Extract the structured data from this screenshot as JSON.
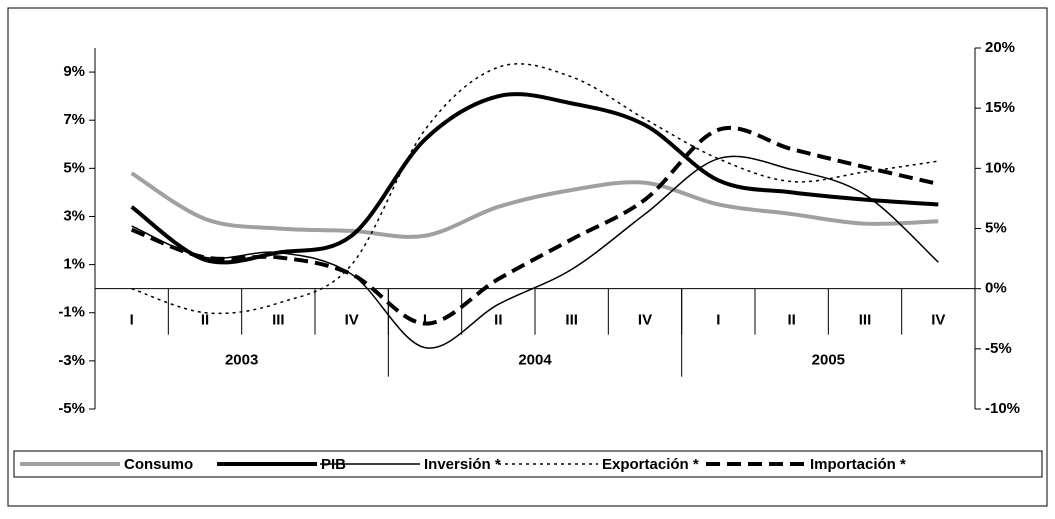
{
  "chart_data": {
    "type": "line",
    "categories": [
      "I",
      "II",
      "III",
      "IV",
      "I",
      "II",
      "III",
      "IV",
      "I",
      "II",
      "III",
      "IV"
    ],
    "groups": [
      {
        "label": "2003",
        "size": 4
      },
      {
        "label": "2004",
        "size": 4
      },
      {
        "label": "2005",
        "size": 4
      }
    ],
    "ylim": [
      -5,
      10
    ],
    "yticks": [
      {
        "value": -5,
        "label": "-5%"
      },
      {
        "value": -3,
        "label": "-3%"
      },
      {
        "value": -1,
        "label": "-1%"
      },
      {
        "value": 1,
        "label": "1%"
      },
      {
        "value": 3,
        "label": "3%"
      },
      {
        "value": 5,
        "label": "5%"
      },
      {
        "value": 7,
        "label": "7%"
      },
      {
        "value": 9,
        "label": "9%"
      }
    ],
    "y2lim": [
      -10,
      20
    ],
    "y2ticks": [
      {
        "value": -10,
        "label": "-10%"
      },
      {
        "value": -5,
        "label": "-5%"
      },
      {
        "value": 0,
        "label": "0%"
      },
      {
        "value": 5,
        "label": "5%"
      },
      {
        "value": 10,
        "label": "10%"
      },
      {
        "value": 15,
        "label": "15%"
      },
      {
        "value": 20,
        "label": "20%"
      }
    ],
    "legend": "bottom",
    "series": [
      {
        "name": "Consumo",
        "color": "#a0a0a0",
        "width": 4,
        "dash": "none",
        "values": [
          4.8,
          2.9,
          2.5,
          2.4,
          2.2,
          3.4,
          4.1,
          4.4,
          3.5,
          3.1,
          2.7,
          2.8
        ]
      },
      {
        "name": "PIB",
        "color": "#000000",
        "width": 4,
        "dash": "none",
        "values": [
          3.4,
          1.2,
          1.5,
          2.2,
          6.2,
          8.0,
          7.7,
          6.8,
          4.5,
          4.0,
          3.7,
          3.5
        ]
      },
      {
        "name": "Inversión *",
        "color": "#000000",
        "width": 1.5,
        "dash": "none",
        "axis": "y2",
        "values": [
          5.2,
          2.6,
          3.0,
          1.2,
          -4.9,
          -1.3,
          1.6,
          6.2,
          10.8,
          9.9,
          7.8,
          2.2
        ]
      },
      {
        "name": "Exportación *",
        "color": "#000000",
        "width": 1.5,
        "dash": "3,4",
        "axis": "y2",
        "values": [
          0,
          -2.0,
          -1.2,
          2.0,
          13.2,
          18.4,
          17.6,
          14.1,
          10.8,
          8.9,
          9.7,
          10.6
        ]
      },
      {
        "name": "Importación *",
        "color": "#000000",
        "width": 4,
        "dash": "14,7",
        "axis": "y2",
        "values": [
          4.9,
          2.6,
          2.6,
          1.2,
          -2.9,
          0.8,
          4.1,
          7.4,
          13.2,
          11.6,
          10.1,
          8.7
        ]
      }
    ]
  }
}
